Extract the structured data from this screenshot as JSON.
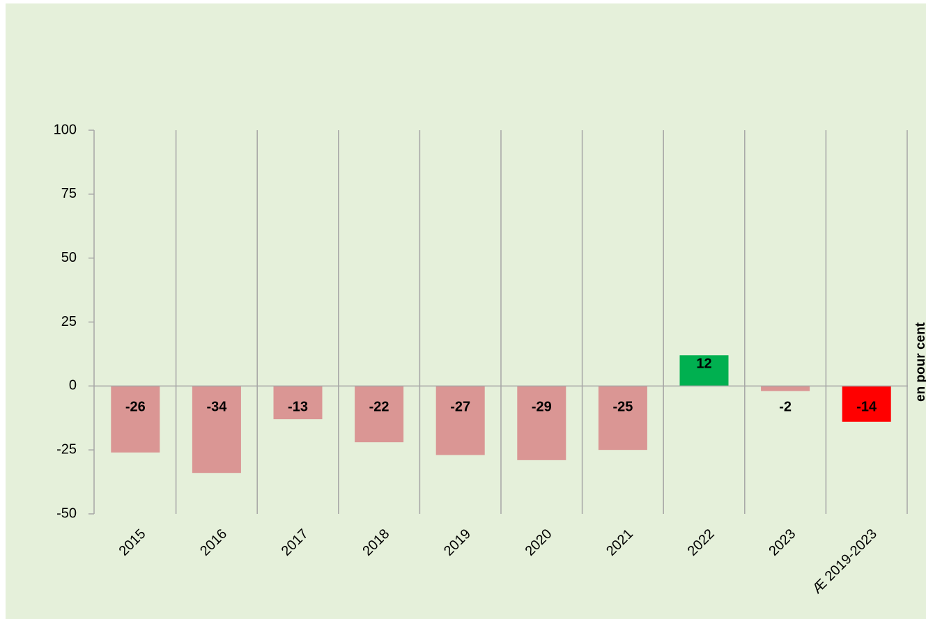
{
  "chart_data": {
    "type": "bar",
    "y_label": "en pour cent",
    "categories": [
      "2015",
      "2016",
      "2017",
      "2018",
      "2019",
      "2020",
      "2021",
      "2022",
      "2023",
      "Æ 2019-2023"
    ],
    "values": [
      -26,
      -34,
      -13,
      -22,
      -27,
      -29,
      -25,
      12,
      -2,
      -14
    ],
    "colors": [
      "#da9694",
      "#da9694",
      "#da9694",
      "#da9694",
      "#da9694",
      "#da9694",
      "#da9694",
      "#00b050",
      "#da9694",
      "#ff0000"
    ],
    "ylim": [
      -50,
      100
    ],
    "yticks": [
      -50,
      -25,
      0,
      25,
      50,
      75,
      100
    ]
  }
}
